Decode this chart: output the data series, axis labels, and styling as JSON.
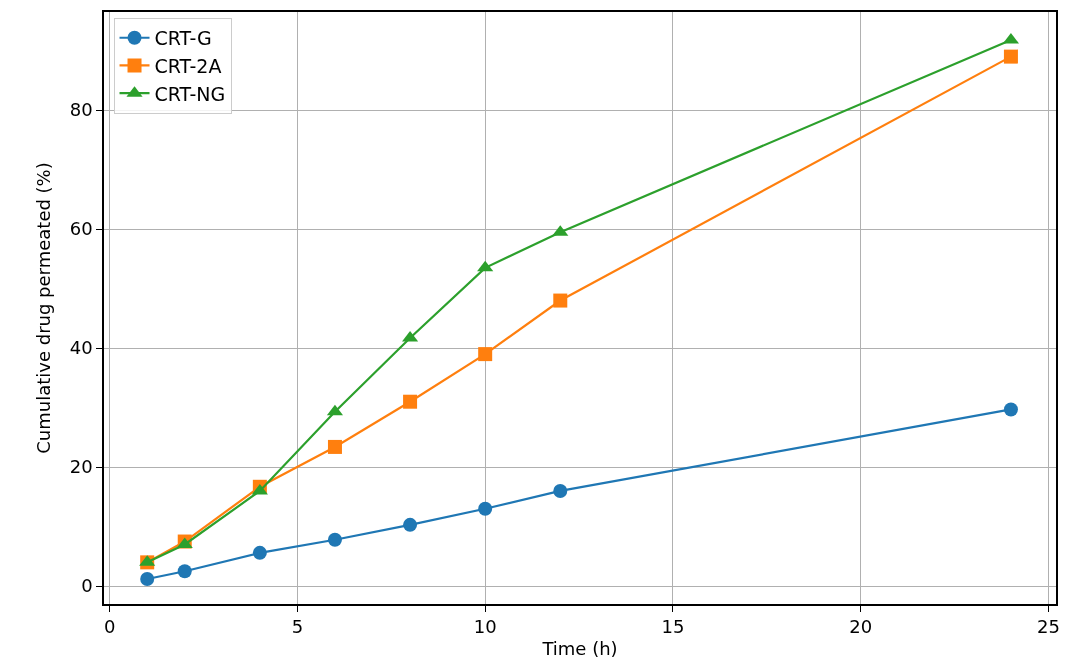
{
  "chart_data": {
    "type": "line",
    "xlabel": "Time (h)",
    "ylabel": "Cumulative drug permeated (%)",
    "x": [
      1,
      2,
      4,
      6,
      8,
      10,
      12,
      24
    ],
    "series": [
      {
        "name": "CRT-G",
        "color": "#1f77b4",
        "marker": "circle",
        "values": [
          1.2,
          2.5,
          5.6,
          7.8,
          10.3,
          13,
          16,
          29.7
        ]
      },
      {
        "name": "CRT-2A",
        "color": "#ff7f0e",
        "marker": "square",
        "values": [
          4,
          7.5,
          16.7,
          23.4,
          31,
          39,
          48,
          89
        ]
      },
      {
        "name": "CRT-NG",
        "color": "#2ca02c",
        "marker": "triangle",
        "values": [
          4,
          7,
          16,
          29.3,
          41.7,
          53.5,
          59.5,
          91.8
        ]
      }
    ],
    "xlim": [
      -0.15,
      25.2
    ],
    "ylim": [
      -3,
      96.5
    ],
    "xticks": [
      0,
      5,
      10,
      15,
      20,
      25
    ],
    "yticks": [
      0,
      20,
      40,
      60,
      80
    ],
    "grid": true,
    "legend": "top left",
    "line_style": "solid"
  }
}
